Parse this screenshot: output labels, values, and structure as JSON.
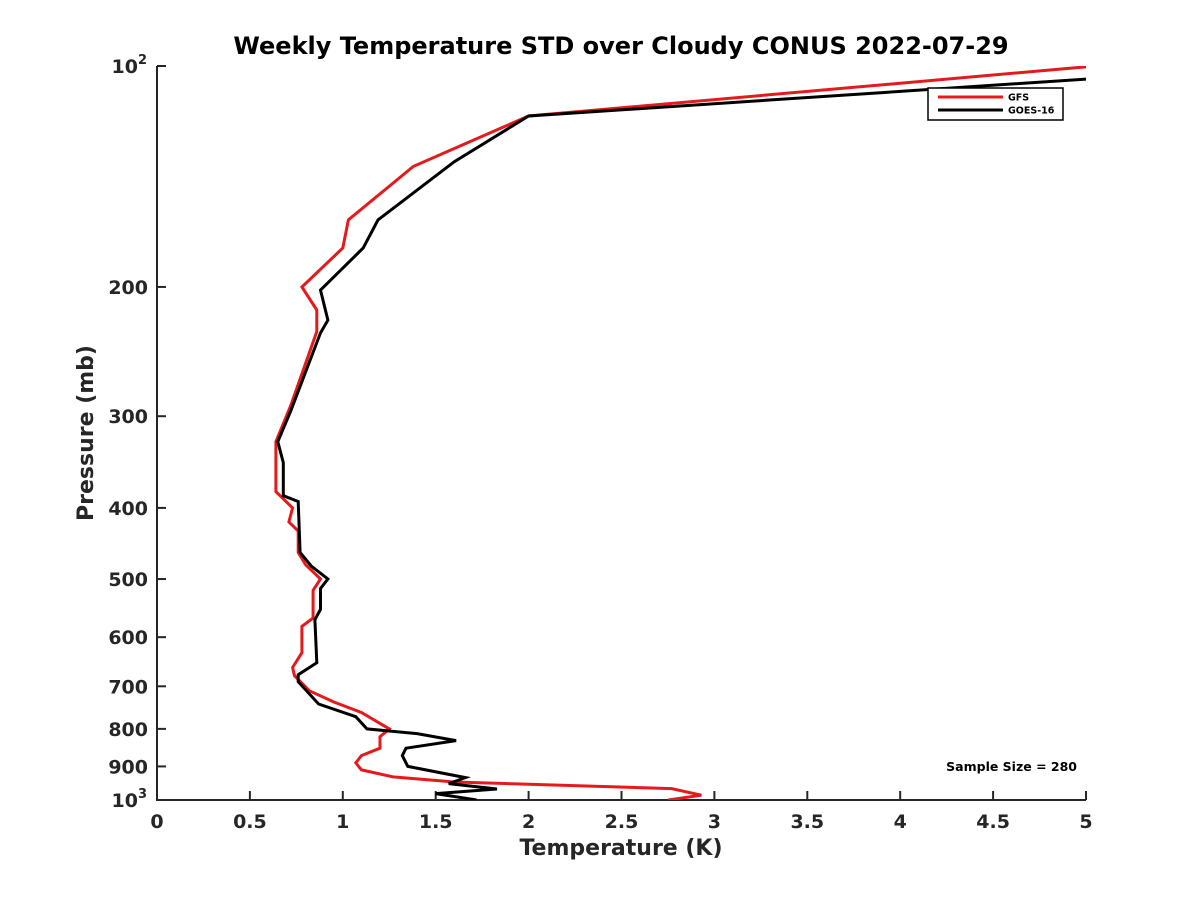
{
  "chart_data": {
    "type": "line",
    "title": "Weekly Temperature STD over Cloudy CONUS 2022-07-29",
    "xlabel": "Temperature (K)",
    "ylabel": "Pressure (mb)",
    "xlim": [
      0,
      5
    ],
    "ylim": [
      100,
      1000
    ],
    "y_scale": "log",
    "y_reversed": true,
    "grid": false,
    "legend_position": "top-right",
    "x_ticks": [
      {
        "value": 0,
        "label": "0"
      },
      {
        "value": 0.5,
        "label": "0.5"
      },
      {
        "value": 1,
        "label": "1"
      },
      {
        "value": 1.5,
        "label": "1.5"
      },
      {
        "value": 2,
        "label": "2"
      },
      {
        "value": 2.5,
        "label": "2.5"
      },
      {
        "value": 3,
        "label": "3"
      },
      {
        "value": 3.5,
        "label": "3.5"
      },
      {
        "value": 4,
        "label": "4"
      },
      {
        "value": 4.5,
        "label": "4.5"
      },
      {
        "value": 5,
        "label": "5"
      }
    ],
    "y_ticks": [
      {
        "value": 100,
        "label": "",
        "base": "10",
        "exp": "2"
      },
      {
        "value": 200,
        "label": "200"
      },
      {
        "value": 300,
        "label": "300"
      },
      {
        "value": 400,
        "label": "400"
      },
      {
        "value": 500,
        "label": "500"
      },
      {
        "value": 600,
        "label": "600"
      },
      {
        "value": 700,
        "label": "700"
      },
      {
        "value": 800,
        "label": "800"
      },
      {
        "value": 900,
        "label": "900"
      },
      {
        "value": 1000,
        "label": "",
        "base": "10",
        "exp": "3"
      }
    ],
    "annotation": "Sample Size = 280",
    "series": [
      {
        "name": "GFS",
        "color": "#e41a1c",
        "points": [
          {
            "x": 5.05,
            "y": 100
          },
          {
            "x": 2.0,
            "y": 117
          },
          {
            "x": 1.38,
            "y": 137
          },
          {
            "x": 1.03,
            "y": 162
          },
          {
            "x": 1.0,
            "y": 177
          },
          {
            "x": 0.78,
            "y": 200
          },
          {
            "x": 0.86,
            "y": 215
          },
          {
            "x": 0.86,
            "y": 230
          },
          {
            "x": 0.72,
            "y": 290
          },
          {
            "x": 0.64,
            "y": 325
          },
          {
            "x": 0.64,
            "y": 380
          },
          {
            "x": 0.73,
            "y": 400
          },
          {
            "x": 0.71,
            "y": 418
          },
          {
            "x": 0.76,
            "y": 430
          },
          {
            "x": 0.76,
            "y": 460
          },
          {
            "x": 0.8,
            "y": 478
          },
          {
            "x": 0.88,
            "y": 500
          },
          {
            "x": 0.84,
            "y": 518
          },
          {
            "x": 0.84,
            "y": 565
          },
          {
            "x": 0.78,
            "y": 580
          },
          {
            "x": 0.78,
            "y": 630
          },
          {
            "x": 0.73,
            "y": 660
          },
          {
            "x": 0.74,
            "y": 677
          },
          {
            "x": 0.82,
            "y": 710
          },
          {
            "x": 0.95,
            "y": 735
          },
          {
            "x": 1.1,
            "y": 760
          },
          {
            "x": 1.25,
            "y": 800
          },
          {
            "x": 1.2,
            "y": 820
          },
          {
            "x": 1.2,
            "y": 850
          },
          {
            "x": 1.1,
            "y": 870
          },
          {
            "x": 1.07,
            "y": 890
          },
          {
            "x": 1.1,
            "y": 910
          },
          {
            "x": 1.27,
            "y": 930
          },
          {
            "x": 1.6,
            "y": 945
          },
          {
            "x": 2.77,
            "y": 965
          },
          {
            "x": 2.93,
            "y": 985
          },
          {
            "x": 2.75,
            "y": 1000
          }
        ]
      },
      {
        "name": "GOES-16",
        "color": "#000000",
        "points": [
          {
            "x": 5.05,
            "y": 104
          },
          {
            "x": 2.0,
            "y": 117
          },
          {
            "x": 1.6,
            "y": 135
          },
          {
            "x": 1.19,
            "y": 162
          },
          {
            "x": 1.11,
            "y": 177
          },
          {
            "x": 0.88,
            "y": 202
          },
          {
            "x": 0.92,
            "y": 222
          },
          {
            "x": 0.88,
            "y": 231
          },
          {
            "x": 0.72,
            "y": 295
          },
          {
            "x": 0.65,
            "y": 325
          },
          {
            "x": 0.68,
            "y": 347
          },
          {
            "x": 0.68,
            "y": 385
          },
          {
            "x": 0.76,
            "y": 392
          },
          {
            "x": 0.77,
            "y": 460
          },
          {
            "x": 0.83,
            "y": 480
          },
          {
            "x": 0.92,
            "y": 500
          },
          {
            "x": 0.88,
            "y": 515
          },
          {
            "x": 0.88,
            "y": 550
          },
          {
            "x": 0.85,
            "y": 568
          },
          {
            "x": 0.86,
            "y": 650
          },
          {
            "x": 0.76,
            "y": 675
          },
          {
            "x": 0.76,
            "y": 690
          },
          {
            "x": 0.87,
            "y": 740
          },
          {
            "x": 1.07,
            "y": 770
          },
          {
            "x": 1.13,
            "y": 800
          },
          {
            "x": 1.4,
            "y": 812
          },
          {
            "x": 1.61,
            "y": 830
          },
          {
            "x": 1.34,
            "y": 850
          },
          {
            "x": 1.32,
            "y": 870
          },
          {
            "x": 1.35,
            "y": 900
          },
          {
            "x": 1.66,
            "y": 932
          },
          {
            "x": 1.57,
            "y": 950
          },
          {
            "x": 1.83,
            "y": 966
          },
          {
            "x": 1.5,
            "y": 980
          },
          {
            "x": 1.72,
            "y": 1000
          }
        ]
      }
    ]
  }
}
